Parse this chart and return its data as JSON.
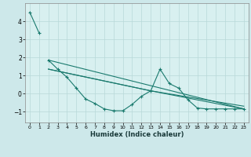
{
  "xlabel": "Humidex (Indice chaleur)",
  "xlim": [
    -0.5,
    23.5
  ],
  "ylim": [
    -1.6,
    5.0
  ],
  "yticks": [
    -1,
    0,
    1,
    2,
    3,
    4
  ],
  "xticks": [
    0,
    1,
    2,
    3,
    4,
    5,
    6,
    7,
    8,
    9,
    10,
    11,
    12,
    13,
    14,
    15,
    16,
    17,
    18,
    19,
    20,
    21,
    22,
    23
  ],
  "bg_color": "#cde8ea",
  "plot_bg_color": "#d8f0f0",
  "line_color": "#1a7a6e",
  "grid_color": "#b8d8d8",
  "series0_x": [
    0,
    1
  ],
  "series0_y": [
    4.5,
    3.35
  ],
  "series1_x": [
    2,
    3,
    4,
    5,
    6,
    7,
    8,
    9,
    10,
    11,
    12,
    13,
    14,
    15,
    16,
    17,
    18,
    19,
    20,
    21,
    22,
    23
  ],
  "series1_y": [
    1.85,
    1.35,
    0.9,
    0.3,
    -0.3,
    -0.55,
    -0.85,
    -0.95,
    -0.95,
    -0.6,
    -0.15,
    0.15,
    1.35,
    0.55,
    0.3,
    -0.35,
    -0.8,
    -0.85,
    -0.85,
    -0.85,
    -0.85,
    -0.85
  ],
  "line1_x": [
    2,
    23
  ],
  "line1_y": [
    1.85,
    -0.85
  ],
  "line2_x": [
    2,
    13,
    23
  ],
  "line2_y": [
    1.35,
    0.15,
    -0.85
  ],
  "line3_x": [
    2,
    13,
    23
  ],
  "line3_y": [
    1.35,
    0.15,
    -0.7
  ]
}
